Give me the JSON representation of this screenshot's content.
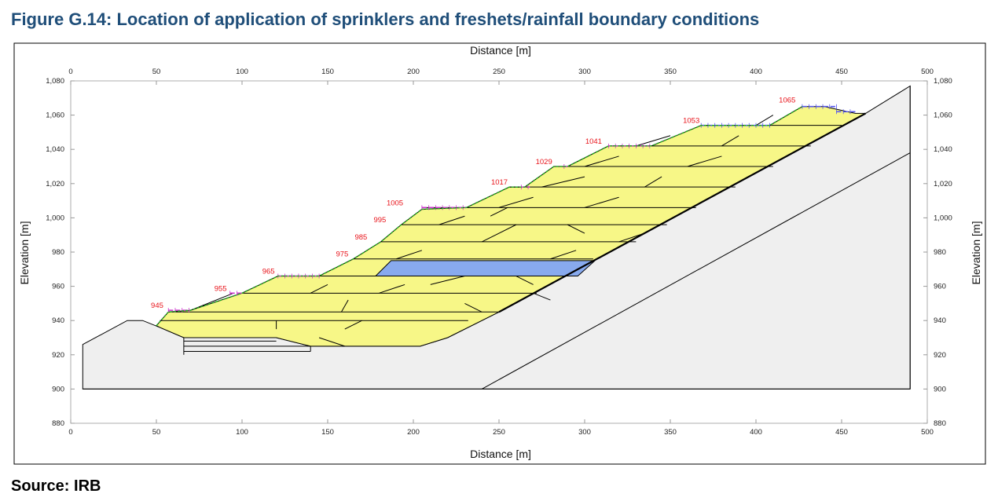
{
  "figure": {
    "title": "Figure G.14: Location of application of sprinklers and freshets/rainfall boundary conditions",
    "source": "Source: IRB"
  },
  "axes": {
    "x_label": "Distance [m]",
    "y_label": "Elevation [m]",
    "x_range": [
      0,
      500
    ],
    "y_range": [
      880,
      1080
    ],
    "x_ticks": [
      "0",
      "50",
      "100",
      "150",
      "200",
      "250",
      "300",
      "350",
      "400",
      "450",
      "500"
    ],
    "y_ticks": [
      "880",
      "900",
      "920",
      "940",
      "960",
      "980",
      "1,000",
      "1,020",
      "1,040",
      "1,060",
      "1,080"
    ]
  },
  "boundary_labels": [
    {
      "text": "945",
      "x": 55,
      "y": 946
    },
    {
      "text": "955",
      "x": 92,
      "y": 956
    },
    {
      "text": "965",
      "x": 120,
      "y": 966
    },
    {
      "text": "975",
      "x": 163,
      "y": 976
    },
    {
      "text": "985",
      "x": 174,
      "y": 986
    },
    {
      "text": "995",
      "x": 185,
      "y": 996
    },
    {
      "text": "1005",
      "x": 195,
      "y": 1006
    },
    {
      "text": "1017",
      "x": 256,
      "y": 1018
    },
    {
      "text": "1029",
      "x": 282,
      "y": 1030
    },
    {
      "text": "1041",
      "x": 311,
      "y": 1042
    },
    {
      "text": "1053",
      "x": 368,
      "y": 1054
    },
    {
      "text": "1065",
      "x": 424,
      "y": 1066
    }
  ],
  "colors": {
    "fill_yellow": "#f7f787",
    "water_blue": "#88aaee",
    "ground_grey": "#efefef",
    "sprinkler_magenta": "#cc33cc",
    "sprinkler_blue": "#5555ee",
    "rainfall_green": "#22aa22",
    "label_red": "#e8141b",
    "title_blue": "#1f4e79"
  }
}
